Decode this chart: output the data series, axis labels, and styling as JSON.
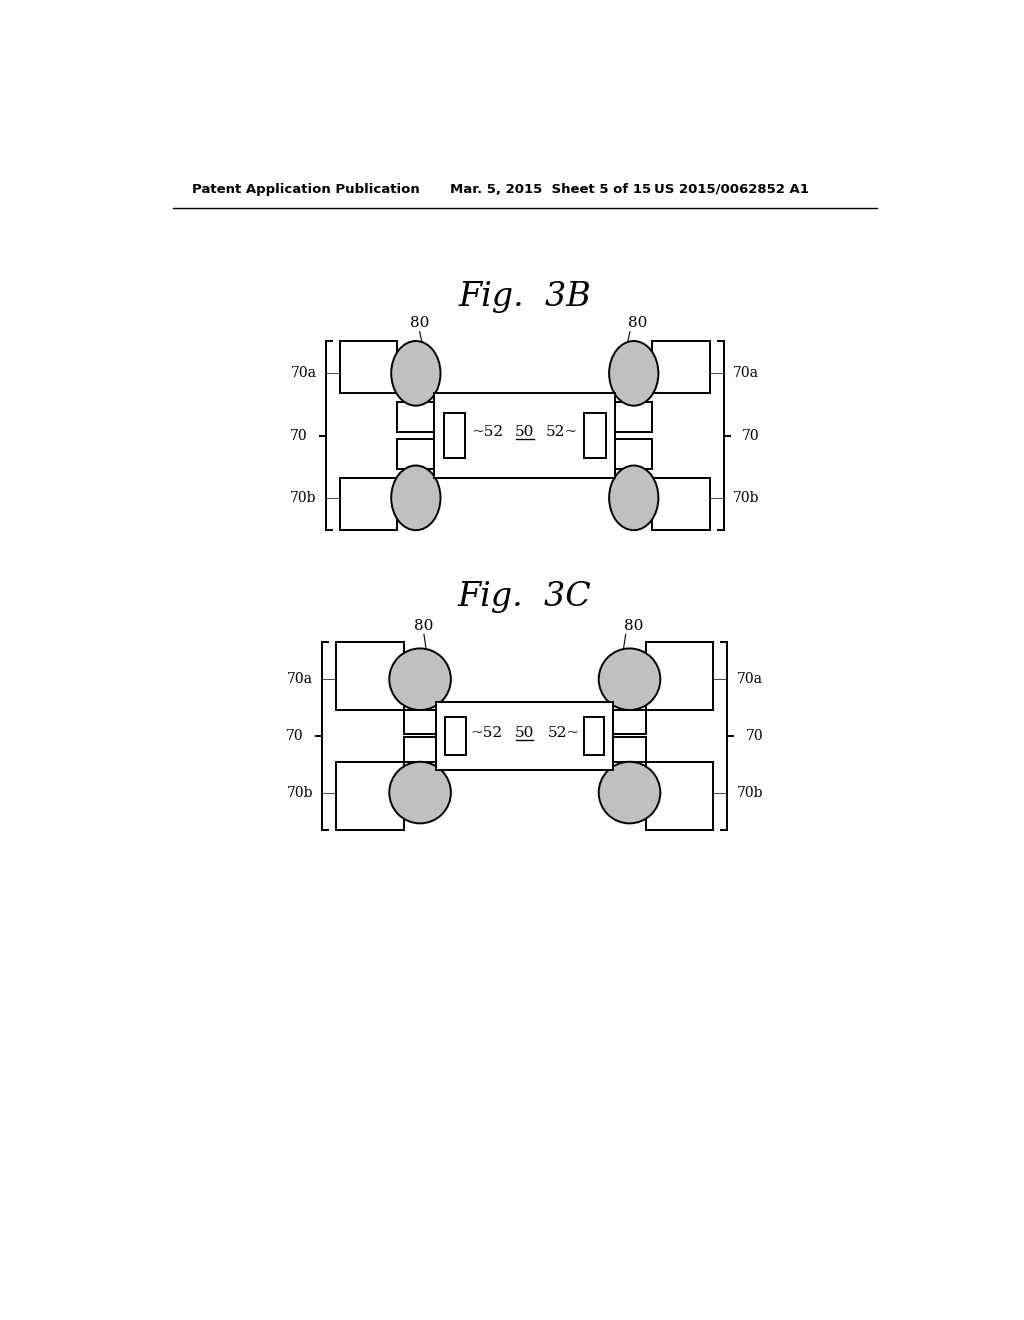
{
  "bg_color": "#ffffff",
  "header_left": "Patent Application Publication",
  "header_mid": "Mar. 5, 2015  Sheet 5 of 15",
  "header_right": "US 2015/0062852 A1",
  "fig3b_title": "Fig.  3B",
  "fig3c_title": "Fig.  3C",
  "gray_fill": "#c0c0c0",
  "line_color": "#000000",
  "lw": 1.4
}
